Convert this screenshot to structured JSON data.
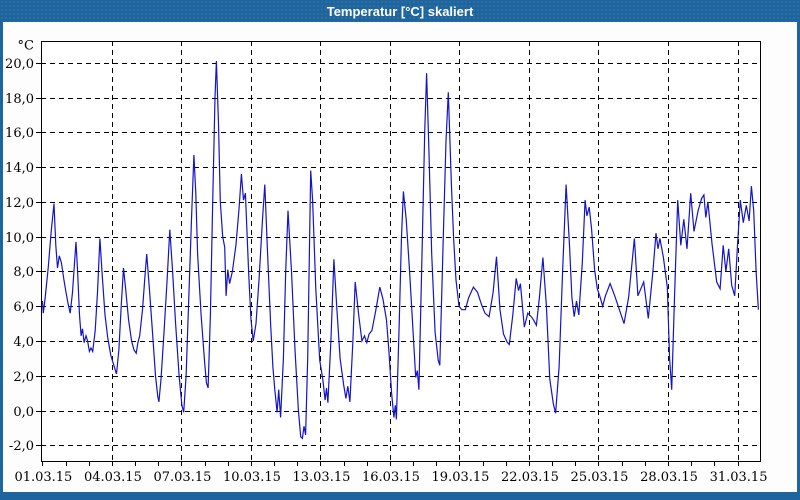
{
  "window": {
    "title": "Temperatur [°C] skaliert"
  },
  "colors": {
    "titlebar": "#1e659e",
    "frame": "#1e659e",
    "content_bg": "#fcfdfc",
    "plot_bg": "#ffffff",
    "grid": "#000000",
    "axis": "#000000",
    "line": "#1414c8",
    "title_text": "#ffffff",
    "label_text": "#000000"
  },
  "chart_data": {
    "type": "line",
    "title": "Temperatur [°C] skaliert",
    "y_unit_label": "°C",
    "xlabel": "",
    "ylabel": "°C",
    "grid": true,
    "legend": "none",
    "xlim_days": [
      0.94,
      31.97
    ],
    "ylim": [
      -2.9,
      21.25
    ],
    "y_ticks": {
      "values": [
        20,
        18,
        16,
        14,
        12,
        10,
        8,
        6,
        4,
        2,
        0,
        -2
      ],
      "labels": [
        "20,0",
        "18,0",
        "16,0",
        "14,0",
        "12,0",
        "10,0",
        "8,0",
        "6,0",
        "4,0",
        "2,0",
        "0,0",
        "-2,0"
      ]
    },
    "x_ticks": {
      "values": [
        1,
        4,
        7,
        10,
        13,
        16,
        19,
        22,
        25,
        28,
        31
      ],
      "labels": [
        "01.03.15",
        "04.03.15",
        "07.03.15",
        "10.03.15",
        "13.03.15",
        "16.03.15",
        "19.03.15",
        "22.03.15",
        "25.03.15",
        "28.03.15",
        "31.03.15"
      ],
      "minor_step_days": 1
    },
    "series": [
      {
        "name": "Temperatur",
        "points": [
          [
            1.0,
            6.3
          ],
          [
            1.04,
            5.6
          ],
          [
            1.12,
            6.5
          ],
          [
            1.25,
            8.2
          ],
          [
            1.38,
            10.3
          ],
          [
            1.5,
            11.9
          ],
          [
            1.58,
            9.5
          ],
          [
            1.65,
            8.2
          ],
          [
            1.73,
            8.9
          ],
          [
            1.82,
            8.5
          ],
          [
            1.92,
            7.6
          ],
          [
            2.02,
            6.8
          ],
          [
            2.1,
            6.2
          ],
          [
            2.2,
            5.6
          ],
          [
            2.3,
            6.8
          ],
          [
            2.38,
            8.4
          ],
          [
            2.45,
            9.7
          ],
          [
            2.52,
            8.0
          ],
          [
            2.6,
            5.5
          ],
          [
            2.67,
            4.3
          ],
          [
            2.73,
            4.7
          ],
          [
            2.8,
            3.9
          ],
          [
            2.88,
            4.3
          ],
          [
            2.95,
            4.0
          ],
          [
            3.03,
            3.4
          ],
          [
            3.1,
            3.6
          ],
          [
            3.17,
            3.4
          ],
          [
            3.28,
            4.6
          ],
          [
            3.38,
            6.8
          ],
          [
            3.48,
            9.9
          ],
          [
            3.58,
            7.8
          ],
          [
            3.7,
            5.5
          ],
          [
            3.82,
            4.2
          ],
          [
            3.95,
            3.2
          ],
          [
            4.08,
            2.6
          ],
          [
            4.2,
            2.1
          ],
          [
            4.3,
            3.5
          ],
          [
            4.4,
            6.0
          ],
          [
            4.5,
            8.2
          ],
          [
            4.6,
            6.9
          ],
          [
            4.72,
            5.2
          ],
          [
            4.85,
            4.0
          ],
          [
            4.95,
            3.5
          ],
          [
            5.05,
            3.3
          ],
          [
            5.12,
            3.9
          ],
          [
            5.2,
            4.3
          ],
          [
            5.32,
            5.8
          ],
          [
            5.42,
            7.6
          ],
          [
            5.5,
            9.0
          ],
          [
            5.62,
            7.0
          ],
          [
            5.75,
            4.5
          ],
          [
            5.88,
            2.0
          ],
          [
            5.98,
            0.8
          ],
          [
            6.03,
            0.5
          ],
          [
            6.12,
            1.8
          ],
          [
            6.25,
            4.5
          ],
          [
            6.38,
            7.5
          ],
          [
            6.5,
            10.4
          ],
          [
            6.62,
            8.0
          ],
          [
            6.75,
            5.0
          ],
          [
            6.9,
            2.0
          ],
          [
            7.02,
            0.3
          ],
          [
            7.1,
            -0.1
          ],
          [
            7.2,
            2.0
          ],
          [
            7.32,
            6.5
          ],
          [
            7.45,
            11.5
          ],
          [
            7.54,
            14.7
          ],
          [
            7.62,
            12.5
          ],
          [
            7.7,
            9.0
          ],
          [
            7.85,
            5.5
          ],
          [
            8.0,
            2.8
          ],
          [
            8.08,
            1.6
          ],
          [
            8.15,
            1.3
          ],
          [
            8.25,
            5.5
          ],
          [
            8.35,
            12.0
          ],
          [
            8.45,
            18.0
          ],
          [
            8.51,
            20.1
          ],
          [
            8.6,
            16.5
          ],
          [
            8.68,
            12.0
          ],
          [
            8.78,
            10.0
          ],
          [
            8.87,
            9.4
          ],
          [
            8.93,
            6.6
          ],
          [
            9.0,
            8.1
          ],
          [
            9.08,
            7.3
          ],
          [
            9.2,
            8.0
          ],
          [
            9.35,
            9.5
          ],
          [
            9.48,
            11.5
          ],
          [
            9.59,
            13.6
          ],
          [
            9.68,
            12.1
          ],
          [
            9.76,
            12.5
          ],
          [
            9.9,
            8.0
          ],
          [
            10.0,
            5.3
          ],
          [
            10.1,
            4.0
          ],
          [
            10.22,
            5.0
          ],
          [
            10.35,
            7.5
          ],
          [
            10.5,
            11.0
          ],
          [
            10.6,
            13.0
          ],
          [
            10.72,
            9.0
          ],
          [
            10.85,
            5.0
          ],
          [
            10.95,
            2.5
          ],
          [
            11.03,
            1.2
          ],
          [
            11.13,
            -0.1
          ],
          [
            11.2,
            1.2
          ],
          [
            11.28,
            -0.4
          ],
          [
            11.4,
            3.0
          ],
          [
            11.5,
            8.0
          ],
          [
            11.6,
            11.5
          ],
          [
            11.75,
            8.0
          ],
          [
            11.9,
            3.5
          ],
          [
            12.05,
            0.0
          ],
          [
            12.15,
            -1.5
          ],
          [
            12.22,
            -1.6
          ],
          [
            12.29,
            -0.9
          ],
          [
            12.36,
            -1.4
          ],
          [
            12.45,
            3.0
          ],
          [
            12.58,
            13.8
          ],
          [
            12.66,
            12.1
          ],
          [
            12.8,
            7.0
          ],
          [
            12.97,
            2.9
          ],
          [
            13.1,
            1.8
          ],
          [
            13.2,
            0.6
          ],
          [
            13.26,
            1.3
          ],
          [
            13.32,
            0.45
          ],
          [
            13.45,
            4.0
          ],
          [
            13.58,
            8.7
          ],
          [
            13.7,
            6.0
          ],
          [
            13.85,
            3.0
          ],
          [
            14.0,
            1.5
          ],
          [
            14.1,
            0.7
          ],
          [
            14.18,
            1.4
          ],
          [
            14.27,
            0.5
          ],
          [
            14.4,
            4.0
          ],
          [
            14.5,
            7.4
          ],
          [
            14.65,
            5.5
          ],
          [
            14.79,
            4.0
          ],
          [
            14.9,
            4.3
          ],
          [
            15.0,
            3.9
          ],
          [
            15.1,
            4.4
          ],
          [
            15.22,
            4.6
          ],
          [
            15.38,
            5.7
          ],
          [
            15.56,
            7.1
          ],
          [
            15.7,
            6.4
          ],
          [
            15.85,
            5.2
          ],
          [
            15.95,
            3.5
          ],
          [
            16.07,
            1.0
          ],
          [
            16.17,
            -0.4
          ],
          [
            16.23,
            0.3
          ],
          [
            16.28,
            -0.5
          ],
          [
            16.4,
            5.0
          ],
          [
            16.5,
            10.0
          ],
          [
            16.58,
            12.6
          ],
          [
            16.7,
            11.0
          ],
          [
            16.85,
            7.9
          ],
          [
            17.0,
            4.5
          ],
          [
            17.11,
            1.9
          ],
          [
            17.18,
            2.3
          ],
          [
            17.25,
            1.2
          ],
          [
            17.4,
            10.0
          ],
          [
            17.5,
            16.0
          ],
          [
            17.58,
            19.4
          ],
          [
            17.68,
            15.0
          ],
          [
            17.8,
            9.0
          ],
          [
            17.95,
            4.5
          ],
          [
            18.08,
            2.9
          ],
          [
            18.15,
            2.6
          ],
          [
            18.3,
            10.0
          ],
          [
            18.42,
            15.5
          ],
          [
            18.52,
            18.3
          ],
          [
            18.65,
            13.0
          ],
          [
            18.75,
            9.8
          ],
          [
            18.85,
            7.5
          ],
          [
            18.98,
            6.0
          ],
          [
            19.1,
            5.8
          ],
          [
            19.25,
            5.8
          ],
          [
            19.4,
            6.5
          ],
          [
            19.6,
            7.1
          ],
          [
            19.78,
            6.8
          ],
          [
            19.95,
            6.1
          ],
          [
            20.1,
            5.6
          ],
          [
            20.28,
            5.4
          ],
          [
            20.45,
            6.8
          ],
          [
            20.6,
            8.85
          ],
          [
            20.75,
            5.8
          ],
          [
            20.9,
            4.4
          ],
          [
            21.05,
            3.95
          ],
          [
            21.15,
            3.8
          ],
          [
            21.3,
            5.5
          ],
          [
            21.45,
            7.6
          ],
          [
            21.55,
            6.9
          ],
          [
            21.63,
            7.3
          ],
          [
            21.8,
            4.8
          ],
          [
            21.95,
            5.6
          ],
          [
            22.1,
            5.4
          ],
          [
            22.2,
            5.2
          ],
          [
            22.32,
            4.9
          ],
          [
            22.45,
            6.5
          ],
          [
            22.6,
            8.8
          ],
          [
            22.75,
            6.0
          ],
          [
            22.9,
            1.8
          ],
          [
            23.05,
            0.4
          ],
          [
            23.15,
            -0.15
          ],
          [
            23.3,
            2.5
          ],
          [
            23.45,
            8.0
          ],
          [
            23.6,
            13.0
          ],
          [
            23.75,
            9.5
          ],
          [
            23.85,
            6.5
          ],
          [
            23.95,
            5.4
          ],
          [
            24.05,
            6.3
          ],
          [
            24.15,
            5.5
          ],
          [
            24.3,
            8.5
          ],
          [
            24.42,
            12.1
          ],
          [
            24.5,
            11.2
          ],
          [
            24.6,
            11.7
          ],
          [
            24.7,
            10.5
          ],
          [
            24.83,
            8.1
          ],
          [
            24.95,
            7.0
          ],
          [
            25.05,
            6.6
          ],
          [
            25.18,
            6.0
          ],
          [
            25.3,
            6.6
          ],
          [
            25.5,
            7.3
          ],
          [
            25.7,
            6.6
          ],
          [
            25.9,
            5.8
          ],
          [
            26.1,
            5.0
          ],
          [
            26.3,
            6.5
          ],
          [
            26.55,
            9.9
          ],
          [
            26.7,
            6.6
          ],
          [
            26.95,
            7.4
          ],
          [
            27.15,
            5.3
          ],
          [
            27.35,
            8.0
          ],
          [
            27.48,
            10.2
          ],
          [
            27.57,
            9.3
          ],
          [
            27.65,
            9.9
          ],
          [
            27.8,
            8.8
          ],
          [
            27.97,
            7.1
          ],
          [
            28.07,
            3.0
          ],
          [
            28.16,
            1.2
          ],
          [
            28.28,
            6.5
          ],
          [
            28.42,
            12.1
          ],
          [
            28.55,
            9.5
          ],
          [
            28.68,
            11.0
          ],
          [
            28.82,
            9.3
          ],
          [
            28.98,
            12.5
          ],
          [
            29.12,
            10.3
          ],
          [
            29.3,
            11.5
          ],
          [
            29.45,
            12.2
          ],
          [
            29.55,
            12.4
          ],
          [
            29.63,
            11.1
          ],
          [
            29.72,
            12.0
          ],
          [
            29.9,
            9.6
          ],
          [
            30.1,
            7.4
          ],
          [
            30.25,
            7.0
          ],
          [
            30.38,
            9.5
          ],
          [
            30.5,
            8.0
          ],
          [
            30.62,
            9.3
          ],
          [
            30.75,
            7.2
          ],
          [
            30.88,
            6.6
          ],
          [
            31.0,
            9.5
          ],
          [
            31.12,
            12.1
          ],
          [
            31.25,
            10.8
          ],
          [
            31.38,
            11.8
          ],
          [
            31.5,
            10.9
          ],
          [
            31.6,
            12.9
          ],
          [
            31.7,
            11.5
          ],
          [
            31.8,
            8.0
          ],
          [
            31.9,
            5.8
          ]
        ]
      }
    ]
  }
}
